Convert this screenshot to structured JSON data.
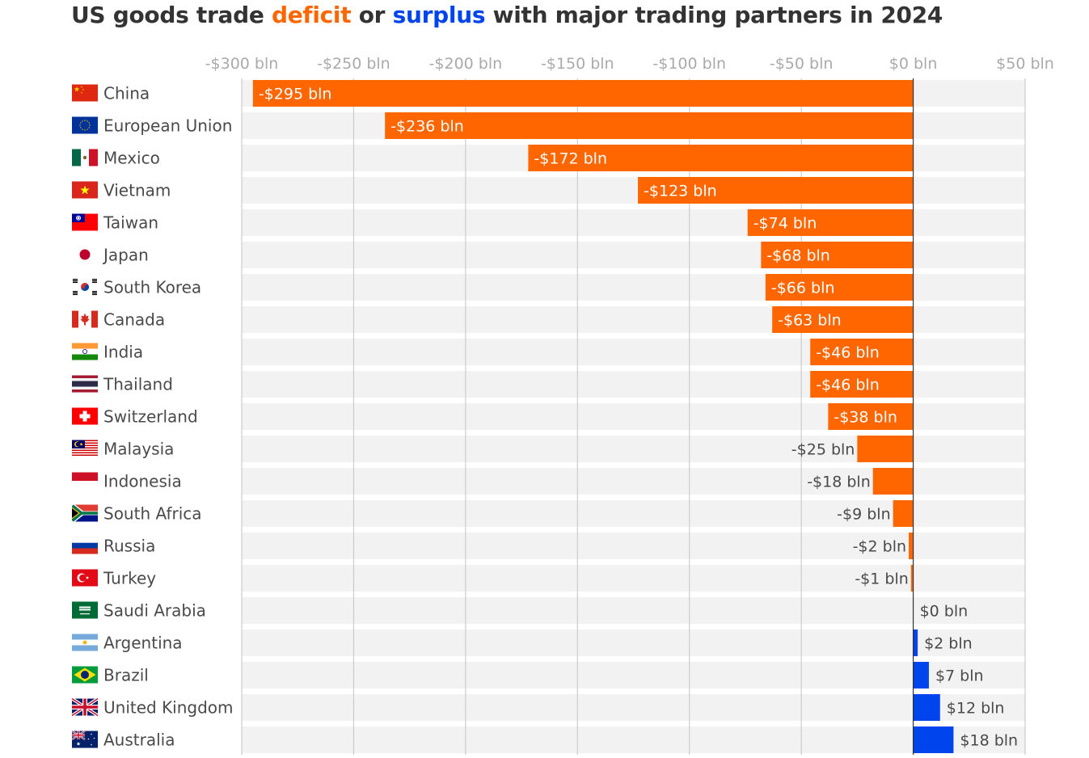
{
  "title": {
    "prefix": "US goods trade ",
    "word_deficit": "deficit",
    "middle": " or ",
    "word_surplus": "surplus",
    "suffix": " with major trading partners in 2024"
  },
  "colors": {
    "deficit": "#ff6600",
    "surplus": "#0044ee",
    "row_band": "#f2f2f2",
    "grid": "#cccccc",
    "zero_line": "#333333",
    "tick_text": "#aaaaaa",
    "label_text": "#4a4a4a"
  },
  "chart_data": {
    "type": "bar",
    "orientation": "horizontal",
    "title": "US goods trade deficit or surplus with major trading partners in 2024",
    "xlim": [
      -300,
      50
    ],
    "x_ticks": [
      -300,
      -250,
      -200,
      -150,
      -100,
      -50,
      0,
      50
    ],
    "x_tick_labels": [
      "-$300 bln",
      "-$250 bln",
      "-$200 bln",
      "-$150 bln",
      "-$100 bln",
      "-$50 bln",
      "$0 bln",
      "$50 bln"
    ],
    "grid": true,
    "categories": [
      "China",
      "European Union",
      "Mexico",
      "Vietnam",
      "Taiwan",
      "Japan",
      "South Korea",
      "Canada",
      "India",
      "Thailand",
      "Switzerland",
      "Malaysia",
      "Indonesia",
      "South Africa",
      "Russia",
      "Turkey",
      "Saudi Arabia",
      "Argentina",
      "Brazil",
      "United Kingdom",
      "Australia"
    ],
    "values": [
      -295,
      -236,
      -172,
      -123,
      -74,
      -68,
      -66,
      -63,
      -46,
      -46,
      -38,
      -25,
      -18,
      -9,
      -2,
      -1,
      0,
      2,
      7,
      12,
      18
    ],
    "value_labels": [
      "-$295 bln",
      "-$236 bln",
      "-$172 bln",
      "-$123 bln",
      "-$74 bln",
      "-$68 bln",
      "-$66 bln",
      "-$63 bln",
      "-$46 bln",
      "-$46 bln",
      "-$38 bln",
      "-$25 bln",
      "-$18 bln",
      "-$9 bln",
      "-$2 bln",
      "-$1 bln",
      "$0 bln",
      "$2 bln",
      "$7 bln",
      "$12 bln",
      "$18 bln"
    ],
    "flags": [
      "china-flag",
      "eu-flag",
      "mexico-flag",
      "vietnam-flag",
      "taiwan-flag",
      "japan-flag",
      "south-korea-flag",
      "canada-flag",
      "india-flag",
      "thailand-flag",
      "switzerland-flag",
      "malaysia-flag",
      "indonesia-flag",
      "south-africa-flag",
      "russia-flag",
      "turkey-flag",
      "saudi-arabia-flag",
      "argentina-flag",
      "brazil-flag",
      "united-kingdom-flag",
      "australia-flag"
    ]
  }
}
